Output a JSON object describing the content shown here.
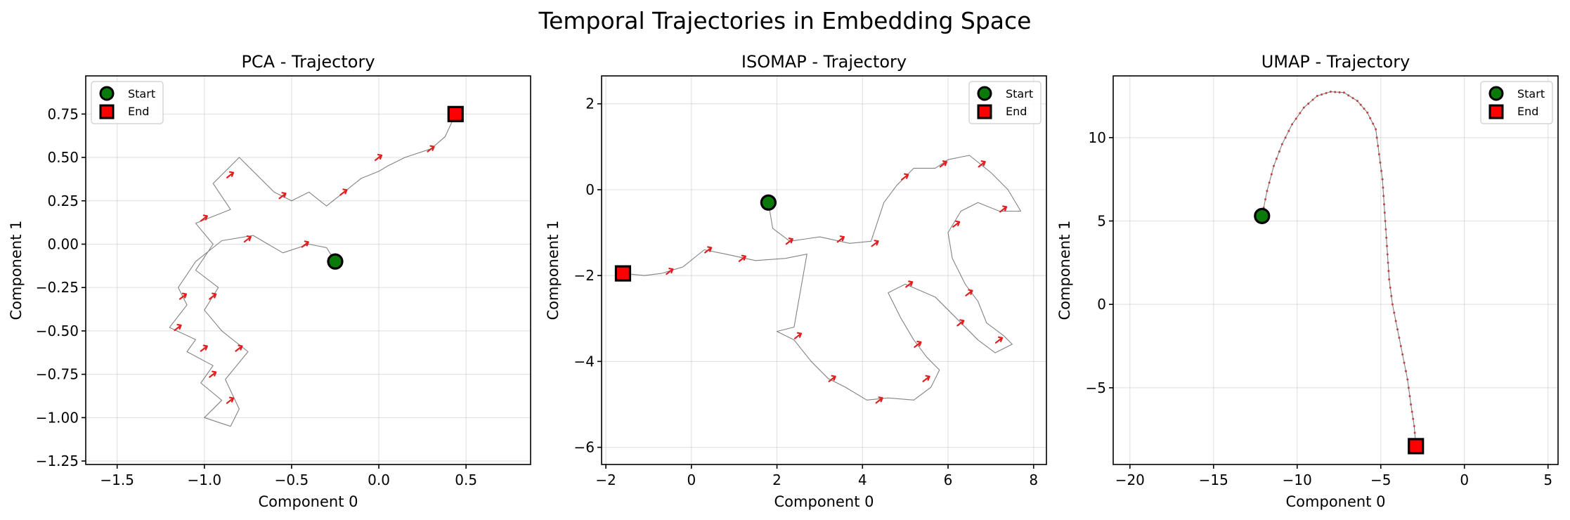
{
  "figure": {
    "title": "Temporal Trajectories in Embedding Space"
  },
  "chart_data": [
    {
      "type": "line",
      "title": "PCA - Trajectory",
      "xlabel": "Component 0",
      "ylabel": "Component 1",
      "xlim": [
        -1.68,
        0.87
      ],
      "ylim": [
        -1.27,
        0.97
      ],
      "xticks": [
        -1.5,
        -1.0,
        -0.5,
        0.0,
        0.5
      ],
      "xtick_labels": [
        "−1.5",
        "−1.0",
        "−0.5",
        "0.0",
        "0.5"
      ],
      "yticks": [
        -1.25,
        -1.0,
        -0.75,
        -0.5,
        -0.25,
        0.0,
        0.25,
        0.5,
        0.75
      ],
      "ytick_labels": [
        "−1.25",
        "−1.00",
        "−0.75",
        "−0.50",
        "−0.25",
        "0.00",
        "0.25",
        "0.50",
        "0.75"
      ],
      "grid": true,
      "legend_position": "upper-left",
      "legend": [
        "Start",
        "End"
      ],
      "start": [
        -0.25,
        -0.1
      ],
      "end": [
        0.44,
        0.75
      ],
      "path": [
        [
          -0.25,
          -0.1
        ],
        [
          -0.3,
          -0.02
        ],
        [
          -0.4,
          0.0
        ],
        [
          -0.55,
          -0.05
        ],
        [
          -0.72,
          0.05
        ],
        [
          -0.9,
          0.02
        ],
        [
          -1.05,
          -0.1
        ],
        [
          -1.15,
          -0.25
        ],
        [
          -1.1,
          -0.35
        ],
        [
          -1.2,
          -0.48
        ],
        [
          -1.05,
          -0.55
        ],
        [
          -1.1,
          -0.62
        ],
        [
          -0.95,
          -0.7
        ],
        [
          -1.02,
          -0.8
        ],
        [
          -0.9,
          -0.9
        ],
        [
          -1.0,
          -1.0
        ],
        [
          -0.85,
          -1.05
        ],
        [
          -0.8,
          -0.95
        ],
        [
          -0.88,
          -0.78
        ],
        [
          -0.75,
          -0.62
        ],
        [
          -0.9,
          -0.5
        ],
        [
          -1.0,
          -0.38
        ],
        [
          -0.92,
          -0.25
        ],
        [
          -1.05,
          -0.15
        ],
        [
          -0.95,
          0.0
        ],
        [
          -1.05,
          0.12
        ],
        [
          -0.85,
          0.2
        ],
        [
          -0.95,
          0.35
        ],
        [
          -0.8,
          0.5
        ],
        [
          -0.7,
          0.4
        ],
        [
          -0.6,
          0.3
        ],
        [
          -0.5,
          0.25
        ],
        [
          -0.4,
          0.3
        ],
        [
          -0.3,
          0.22
        ],
        [
          -0.2,
          0.3
        ],
        [
          -0.1,
          0.38
        ],
        [
          0.0,
          0.42
        ],
        [
          0.05,
          0.45
        ],
        [
          0.15,
          0.5
        ],
        [
          0.3,
          0.55
        ],
        [
          0.38,
          0.62
        ],
        [
          0.44,
          0.75
        ]
      ],
      "arrows": [
        [
          -0.42,
          0.0
        ],
        [
          -0.75,
          0.03
        ],
        [
          -1.12,
          -0.3
        ],
        [
          -1.15,
          -0.48
        ],
        [
          -1.0,
          -0.6
        ],
        [
          -0.95,
          -0.75
        ],
        [
          -0.85,
          -0.9
        ],
        [
          -0.8,
          -0.6
        ],
        [
          -0.95,
          -0.3
        ],
        [
          -1.0,
          0.15
        ],
        [
          -0.85,
          0.4
        ],
        [
          -0.55,
          0.28
        ],
        [
          -0.2,
          0.3
        ],
        [
          0.0,
          0.5
        ],
        [
          0.3,
          0.55
        ]
      ]
    },
    {
      "type": "line",
      "title": "ISOMAP - Trajectory",
      "xlabel": "Component 0",
      "ylabel": "Component 1",
      "xlim": [
        -2.1,
        8.3
      ],
      "ylim": [
        -6.4,
        2.65
      ],
      "xticks": [
        -2,
        0,
        2,
        4,
        6,
        8
      ],
      "xtick_labels": [
        "−2",
        "0",
        "2",
        "4",
        "6",
        "8"
      ],
      "yticks": [
        -6,
        -4,
        -2,
        0,
        2
      ],
      "ytick_labels": [
        "−6",
        "−4",
        "−2",
        "0",
        "2"
      ],
      "grid": true,
      "legend_position": "upper-right",
      "legend": [
        "Start",
        "End"
      ],
      "start": [
        1.8,
        -0.3
      ],
      "end": [
        -1.6,
        -1.95
      ],
      "path": [
        [
          1.8,
          -0.3
        ],
        [
          1.9,
          -0.9
        ],
        [
          2.3,
          -1.2
        ],
        [
          3.0,
          -1.1
        ],
        [
          3.7,
          -1.25
        ],
        [
          4.2,
          -1.2
        ],
        [
          4.5,
          -0.3
        ],
        [
          4.8,
          0.1
        ],
        [
          5.2,
          0.5
        ],
        [
          5.7,
          0.5
        ],
        [
          6.0,
          0.7
        ],
        [
          6.5,
          0.8
        ],
        [
          7.0,
          0.4
        ],
        [
          7.4,
          0.0
        ],
        [
          7.7,
          -0.5
        ],
        [
          7.2,
          -0.5
        ],
        [
          6.7,
          -0.3
        ],
        [
          6.3,
          -0.5
        ],
        [
          6.0,
          -1.0
        ],
        [
          6.1,
          -1.6
        ],
        [
          6.4,
          -2.2
        ],
        [
          6.7,
          -2.6
        ],
        [
          6.9,
          -3.1
        ],
        [
          7.3,
          -3.4
        ],
        [
          7.5,
          -3.6
        ],
        [
          7.1,
          -3.8
        ],
        [
          6.7,
          -3.5
        ],
        [
          6.2,
          -3.0
        ],
        [
          5.7,
          -2.5
        ],
        [
          5.0,
          -2.2
        ],
        [
          4.6,
          -2.4
        ],
        [
          4.9,
          -3.0
        ],
        [
          5.2,
          -3.5
        ],
        [
          5.5,
          -3.9
        ],
        [
          5.8,
          -4.2
        ],
        [
          5.6,
          -4.6
        ],
        [
          5.2,
          -4.9
        ],
        [
          4.6,
          -4.85
        ],
        [
          4.1,
          -4.9
        ],
        [
          3.6,
          -4.6
        ],
        [
          3.2,
          -4.4
        ],
        [
          2.8,
          -4.0
        ],
        [
          2.4,
          -3.5
        ],
        [
          2.0,
          -3.3
        ],
        [
          2.4,
          -3.2
        ],
        [
          2.7,
          -1.5
        ],
        [
          2.2,
          -1.6
        ],
        [
          1.5,
          -1.65
        ],
        [
          0.8,
          -1.5
        ],
        [
          0.3,
          -1.4
        ],
        [
          -0.2,
          -1.8
        ],
        [
          -0.7,
          -1.95
        ],
        [
          -1.1,
          -2.0
        ],
        [
          -1.6,
          -1.95
        ]
      ],
      "arrows": [
        [
          2.3,
          -1.2
        ],
        [
          3.5,
          -1.15
        ],
        [
          4.3,
          -1.25
        ],
        [
          5.0,
          0.3
        ],
        [
          5.9,
          0.6
        ],
        [
          6.8,
          0.6
        ],
        [
          7.3,
          -0.45
        ],
        [
          6.2,
          -0.8
        ],
        [
          6.5,
          -2.4
        ],
        [
          7.2,
          -3.5
        ],
        [
          6.3,
          -3.1
        ],
        [
          5.1,
          -2.2
        ],
        [
          5.3,
          -3.6
        ],
        [
          5.5,
          -4.4
        ],
        [
          4.4,
          -4.9
        ],
        [
          3.3,
          -4.4
        ],
        [
          2.5,
          -3.4
        ],
        [
          1.2,
          -1.6
        ],
        [
          0.4,
          -1.4
        ],
        [
          -0.5,
          -1.9
        ]
      ]
    },
    {
      "type": "line",
      "title": "UMAP - Trajectory",
      "xlabel": "Component 0",
      "ylabel": "Component 1",
      "xlim": [
        -21.0,
        5.6
      ],
      "ylim": [
        -9.6,
        13.7
      ],
      "xticks": [
        -20,
        -15,
        -10,
        -5,
        0,
        5
      ],
      "xtick_labels": [
        "−20",
        "−15",
        "−10",
        "−5",
        "0",
        "5"
      ],
      "yticks": [
        -5,
        0,
        5,
        10
      ],
      "ytick_labels": [
        "−5",
        "0",
        "5",
        "10"
      ],
      "grid": true,
      "legend_position": "upper-right",
      "legend": [
        "Start",
        "End"
      ],
      "start": [
        -12.1,
        5.3
      ],
      "end": [
        -2.9,
        -8.5
      ],
      "path": [
        [
          -12.1,
          5.3
        ],
        [
          -11.8,
          6.8
        ],
        [
          -11.4,
          8.3
        ],
        [
          -10.9,
          9.6
        ],
        [
          -10.3,
          10.8
        ],
        [
          -9.6,
          11.8
        ],
        [
          -8.8,
          12.5
        ],
        [
          -8.0,
          12.75
        ],
        [
          -7.2,
          12.7
        ],
        [
          -6.4,
          12.2
        ],
        [
          -5.8,
          11.5
        ],
        [
          -5.3,
          10.5
        ],
        [
          -5.1,
          9.0
        ],
        [
          -4.9,
          7.5
        ],
        [
          -4.8,
          6.0
        ],
        [
          -4.7,
          4.5
        ],
        [
          -4.6,
          3.0
        ],
        [
          -4.5,
          1.5
        ],
        [
          -4.3,
          0.0
        ],
        [
          -4.0,
          -1.5
        ],
        [
          -3.7,
          -3.0
        ],
        [
          -3.4,
          -4.5
        ],
        [
          -3.2,
          -6.0
        ],
        [
          -3.0,
          -7.3
        ],
        [
          -2.9,
          -8.5
        ]
      ],
      "arrows": []
    }
  ]
}
